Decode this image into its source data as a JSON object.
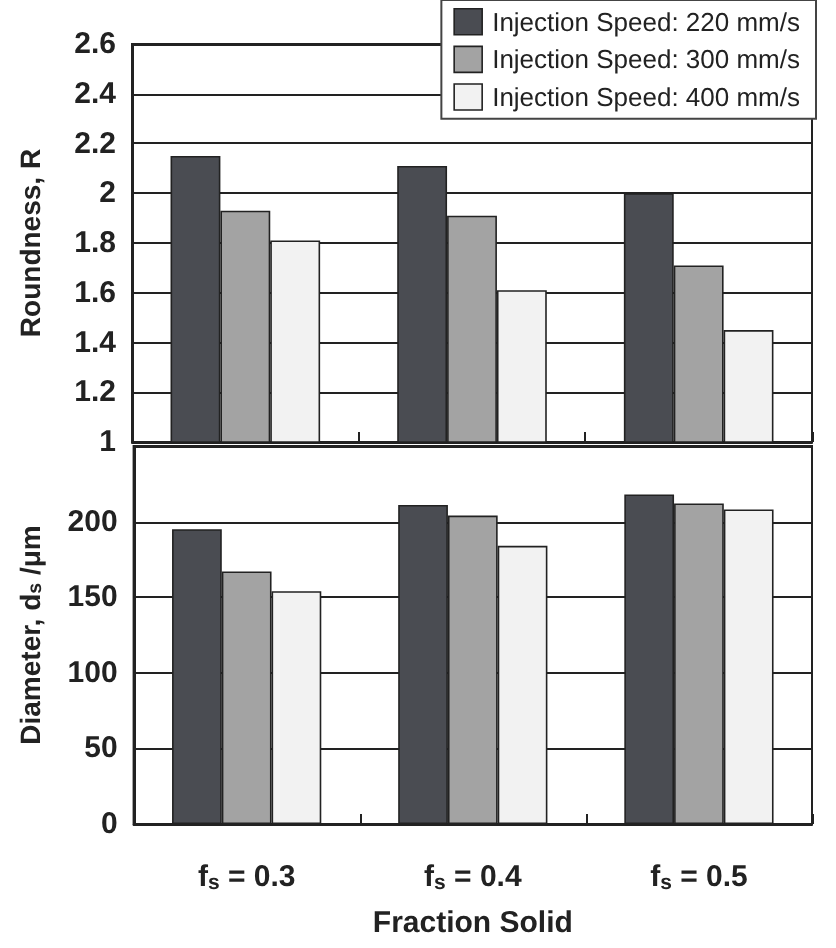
{
  "chart_data": [
    {
      "type": "bar",
      "categories": [
        null,
        null,
        null
      ],
      "ylabel": "Roundness, R",
      "series": [
        {
          "name": "Injection Speed: 220 mm/s",
          "color": "#4a4c52",
          "values": [
            2.15,
            2.11,
            2.0
          ]
        },
        {
          "name": "Injection Speed: 300 mm/s",
          "color": "#a3a3a3",
          "values": [
            1.93,
            1.91,
            1.71
          ]
        },
        {
          "name": "Injection Speed: 400 mm/s",
          "color": "#f2f2f2",
          "values": [
            1.81,
            1.61,
            1.45
          ]
        }
      ],
      "ylim": [
        1,
        2.6
      ],
      "yticks": [
        1,
        1.2,
        1.4,
        1.6,
        1.8,
        2,
        2.2,
        2.4,
        2.6
      ],
      "grid": "y",
      "legend": "top right",
      "tick_labels": "y"
    },
    {
      "type": "bar",
      "categories": [
        "f$_{s}$ = 0.3",
        "f$_{s}$ = 0.4",
        "f$_{s}$ = 0.5"
      ],
      "ylabel": "Diameter, d$_{s}$ /μm",
      "xlabel": "Fraction Solid",
      "series": [
        {
          "color": "#4a4c52",
          "values": [
            195,
            211,
            218
          ]
        },
        {
          "color": "#a3a3a3",
          "values": [
            167,
            204,
            212
          ]
        },
        {
          "color": "#f2f2f2",
          "values": [
            154,
            184,
            208
          ]
        }
      ],
      "ylim": [
        0,
        250
      ],
      "yticks": [
        0,
        50,
        100,
        150,
        200,
        {
          "value": 250,
          "label": null
        }
      ],
      "grid": "y"
    }
  ]
}
